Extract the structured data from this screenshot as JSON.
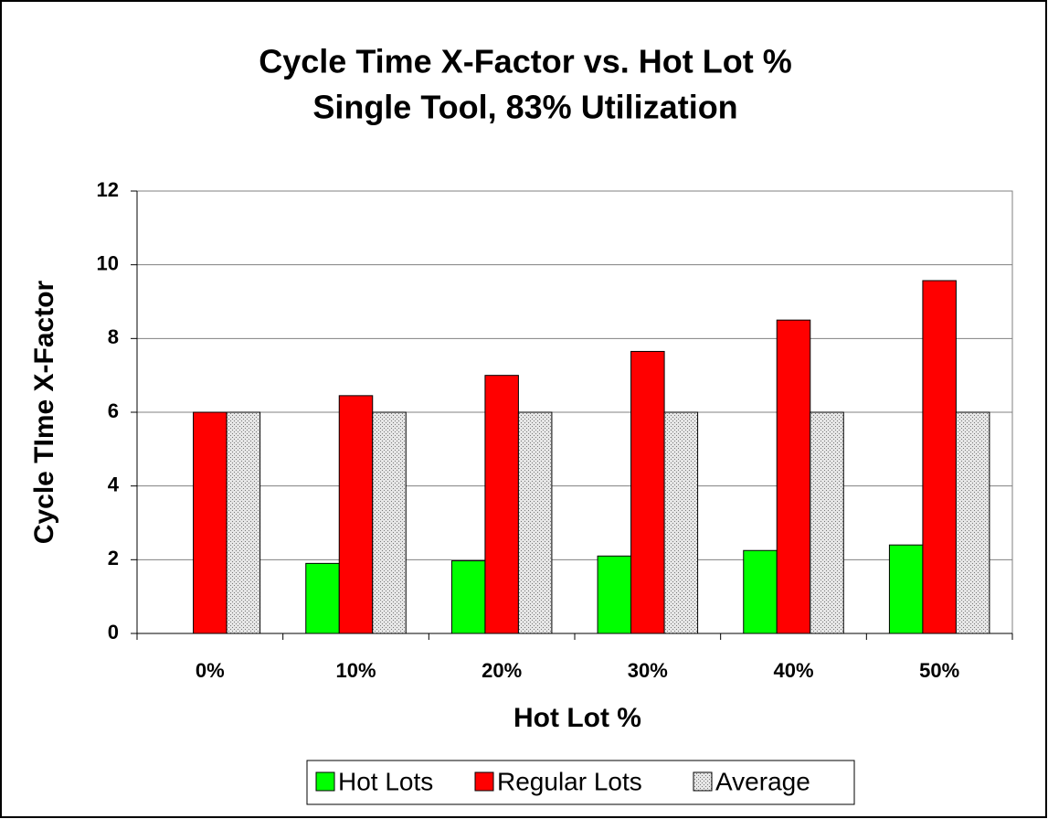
{
  "chart_data": {
    "type": "bar",
    "title": "Cycle Time X-Factor vs. Hot Lot %",
    "subtitle": "Single Tool, 83% Utilization",
    "x_label": "Hot Lot %",
    "y_label": "Cycle TIme X-Factor",
    "categories": [
      "0%",
      "10%",
      "20%",
      "30%",
      "40%",
      "50%"
    ],
    "series": [
      {
        "name": "Hot Lots",
        "color": "#00ff00",
        "values": [
          null,
          1.9,
          1.97,
          2.1,
          2.25,
          2.4
        ]
      },
      {
        "name": "Regular Lots",
        "color": "#ff0000",
        "values": [
          6.0,
          6.45,
          7.0,
          7.65,
          8.5,
          9.57
        ]
      },
      {
        "name": "Average",
        "color": "#c0c0c0",
        "pattern": "dotted",
        "values": [
          6,
          6,
          6,
          6,
          6,
          6
        ]
      }
    ],
    "ylim": [
      0,
      12
    ],
    "yticks": [
      0,
      2,
      4,
      6,
      8,
      10,
      12
    ],
    "grid": true,
    "legend": "bottom"
  }
}
